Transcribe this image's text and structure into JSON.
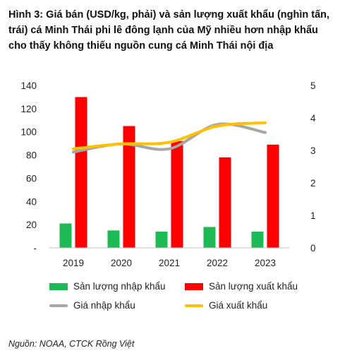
{
  "title": "Hình 3: Giá bán (USD/kg, phải) và sản lượng xuất khẩu (nghìn tấn, trái) cá Minh Thái phi lê đông lạnh của Mỹ nhiều hơn nhập khẩu cho thấy không thiếu nguồn cung cá Minh Thái nội địa",
  "source": "Nguồn: NOAA, CTCK Rồng Việt",
  "colors": {
    "import_volume": "#1db954",
    "export_volume": "#ff0000",
    "import_price": "#a6a6a6",
    "export_price": "#ffc000"
  },
  "chart_data": {
    "type": "bar",
    "categories": [
      "2019",
      "2020",
      "2021",
      "2022",
      "2023"
    ],
    "series": [
      {
        "name": "Sản lượng nhập khẩu",
        "type": "bar",
        "axis": "left",
        "values": [
          21,
          15,
          14,
          18,
          14
        ]
      },
      {
        "name": "Sản lượng xuất khẩu",
        "type": "bar",
        "axis": "left",
        "values": [
          130,
          105,
          92,
          78,
          89
        ]
      },
      {
        "name": "Giá nhập khẩu",
        "type": "line",
        "axis": "right",
        "values": [
          2.95,
          3.2,
          3.05,
          3.8,
          3.55
        ]
      },
      {
        "name": "Giá xuất khẩu",
        "type": "line",
        "axis": "right",
        "values": [
          3.05,
          3.2,
          3.25,
          3.75,
          3.85
        ]
      }
    ],
    "y_left": {
      "ylim": [
        0,
        140
      ],
      "ticks": [
        "-",
        "20",
        "40",
        "60",
        "80",
        "100",
        "120",
        "140"
      ]
    },
    "y_right": {
      "ylim": [
        0,
        5
      ],
      "ticks": [
        "0",
        "1",
        "2",
        "3",
        "4",
        "5"
      ]
    },
    "grid": false,
    "legend_position": "bottom"
  }
}
